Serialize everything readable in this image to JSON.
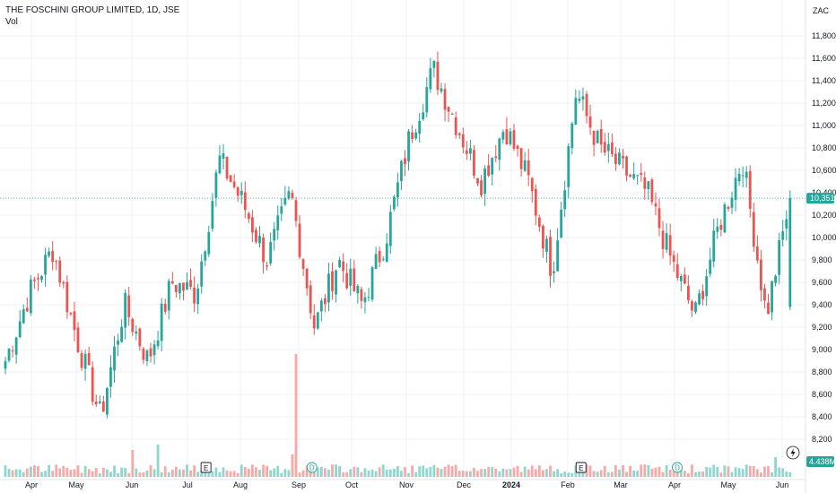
{
  "legend": {
    "symbol_line": "THE FOSCHINI GROUP LIMITED, 1D, JSE",
    "volume_label": "Vol"
  },
  "currency": "ZAC",
  "last_price_label": "10,351",
  "volume_label_value": "4.438M",
  "colors": {
    "up": "#26a69a",
    "down": "#ef5350",
    "up_vol": "#8ed6ce",
    "down_vol": "#f7a9a7",
    "grid": "#eef0f5",
    "axis_text": "#131722"
  },
  "markers": [
    {
      "letter": "E",
      "month_index": 3.35,
      "kind": "earnings"
    },
    {
      "letter": "D",
      "month_index": 5.25,
      "kind": "dividend"
    },
    {
      "letter": "E",
      "month_index": 10.25,
      "kind": "earnings"
    },
    {
      "letter": "D",
      "month_index": 12.05,
      "kind": "dividend"
    },
    {
      "letter": "E",
      "month_index": 16.3,
      "kind": "earnings"
    }
  ],
  "chart_data": {
    "type": "candlestick",
    "title": "THE FOSCHINI GROUP LIMITED, 1D, JSE",
    "y_unit": "ZAC",
    "ylim": [
      8100,
      12000
    ],
    "y_ticks": [
      "8,200",
      "8,400",
      "8,600",
      "8,800",
      "9,000",
      "9,200",
      "9,400",
      "9,600",
      "9,800",
      "10,000",
      "10,200",
      "10,400",
      "10,600",
      "10,800",
      "11,000",
      "11,200",
      "11,400",
      "11,600",
      "11,800"
    ],
    "x_ticks": [
      "Apr",
      "May",
      "Jun",
      "Jul",
      "Aug",
      "Sep",
      "Oct",
      "Nov",
      "Dec",
      "2024",
      "Feb",
      "Mar",
      "Apr",
      "May",
      "Jun"
    ],
    "x_tick_bold": [
      false,
      false,
      false,
      false,
      false,
      false,
      false,
      false,
      false,
      true,
      false,
      false,
      false,
      false,
      false
    ],
    "grid": true,
    "last_close": 10351,
    "last_volume": "4.438M",
    "approx_close_path": [
      {
        "x": "Mar 2023",
        "y": 8900
      },
      {
        "x": "Apr 2023",
        "y": 9500
      },
      {
        "x": "Apr 2023 late",
        "y": 9900
      },
      {
        "x": "May 2023",
        "y": 9100
      },
      {
        "x": "May 2023 late",
        "y": 8400
      },
      {
        "x": "Jun 2023",
        "y": 9400
      },
      {
        "x": "Jun 2023 mid",
        "y": 8900
      },
      {
        "x": "Jul 2023",
        "y": 9600
      },
      {
        "x": "Jul 2023 late",
        "y": 9500
      },
      {
        "x": "Aug 2023",
        "y": 10700
      },
      {
        "x": "Aug 2023 mid",
        "y": 10300
      },
      {
        "x": "Aug 2023 late",
        "y": 9800
      },
      {
        "x": "Sep 2023",
        "y": 10400
      },
      {
        "x": "Sep 2023 mid",
        "y": 9200
      },
      {
        "x": "Oct 2023",
        "y": 9800
      },
      {
        "x": "Oct 2023 late",
        "y": 9400
      },
      {
        "x": "Nov 2023",
        "y": 10000
      },
      {
        "x": "Nov 2023 mid",
        "y": 10900
      },
      {
        "x": "Nov 2023 late",
        "y": 11500
      },
      {
        "x": "Dec 2023",
        "y": 11000
      },
      {
        "x": "Dec 2023 mid",
        "y": 10500
      },
      {
        "x": "Dec 2023 late",
        "y": 11000
      },
      {
        "x": "Jan 2024",
        "y": 10500
      },
      {
        "x": "Jan 2024 late",
        "y": 9700
      },
      {
        "x": "Feb 2024",
        "y": 11300
      },
      {
        "x": "Feb 2024 mid",
        "y": 10800
      },
      {
        "x": "Mar 2024",
        "y": 10600
      },
      {
        "x": "Mar 2024 mid",
        "y": 10400
      },
      {
        "x": "Apr 2024",
        "y": 9800
      },
      {
        "x": "Apr 2024 late",
        "y": 9300
      },
      {
        "x": "May 2024",
        "y": 10100
      },
      {
        "x": "May 2024 late",
        "y": 10700
      },
      {
        "x": "Jun 2024",
        "y": 9300
      },
      {
        "x": "Jun 2024 last",
        "y": 10351
      }
    ]
  }
}
